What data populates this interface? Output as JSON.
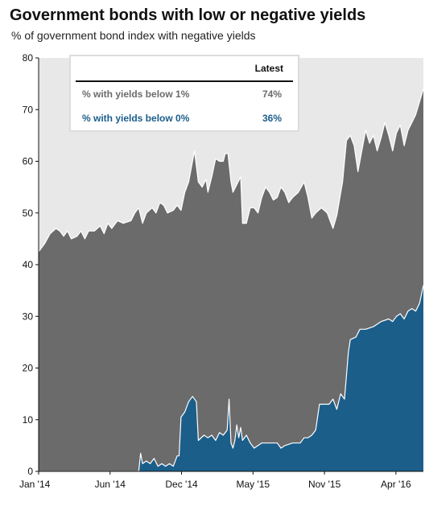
{
  "chart_data": {
    "type": "area",
    "title": "Government bonds with low or negative yields",
    "subtitle": "% of government bond index with negative yields",
    "xlabel": "",
    "ylabel": "",
    "ylim": [
      0,
      80
    ],
    "y_ticks": [
      "0",
      "10",
      "20",
      "30",
      "40",
      "50",
      "60",
      "70",
      "80"
    ],
    "x_ticks": [
      {
        "t": 0,
        "label": "Jan '14"
      },
      {
        "t": 0.1857,
        "label": "Jun '14"
      },
      {
        "t": 0.3714,
        "label": "Dec '14"
      },
      {
        "t": 0.5571,
        "label": "May '15"
      },
      {
        "t": 0.7429,
        "label": "Nov '15"
      },
      {
        "t": 0.9286,
        "label": "Apr '16"
      }
    ],
    "grid": false,
    "legend_position": "top-left",
    "legend": {
      "header": "Latest",
      "rows": [
        {
          "label": "% with yields below 1%",
          "value": "74%",
          "color": "#6b6b6b"
        },
        {
          "label": "% with yields below 0%",
          "value": "36%",
          "color": "#1b5e8a"
        }
      ]
    },
    "series": [
      {
        "name": "% with yields below 1%",
        "color": "#6b6b6b",
        "points": [
          [
            0.0,
            42.5
          ],
          [
            0.015,
            44.0
          ],
          [
            0.03,
            46.0
          ],
          [
            0.045,
            47.0
          ],
          [
            0.055,
            46.5
          ],
          [
            0.065,
            45.5
          ],
          [
            0.075,
            46.5
          ],
          [
            0.085,
            45.0
          ],
          [
            0.1,
            45.5
          ],
          [
            0.11,
            46.5
          ],
          [
            0.12,
            45.0
          ],
          [
            0.13,
            46.5
          ],
          [
            0.145,
            46.5
          ],
          [
            0.16,
            47.5
          ],
          [
            0.17,
            46.0
          ],
          [
            0.18,
            48.0
          ],
          [
            0.19,
            47.0
          ],
          [
            0.205,
            48.5
          ],
          [
            0.22,
            48.0
          ],
          [
            0.24,
            48.5
          ],
          [
            0.25,
            50.0
          ],
          [
            0.26,
            51.0
          ],
          [
            0.27,
            48.0
          ],
          [
            0.28,
            50.0
          ],
          [
            0.295,
            51.0
          ],
          [
            0.305,
            50.0
          ],
          [
            0.315,
            52.0
          ],
          [
            0.325,
            51.5
          ],
          [
            0.335,
            50.0
          ],
          [
            0.35,
            50.5
          ],
          [
            0.36,
            51.5
          ],
          [
            0.37,
            50.5
          ],
          [
            0.38,
            54.0
          ],
          [
            0.39,
            56.0
          ],
          [
            0.4,
            60.0
          ],
          [
            0.405,
            62.0
          ],
          [
            0.415,
            56.0
          ],
          [
            0.425,
            55.0
          ],
          [
            0.435,
            56.5
          ],
          [
            0.44,
            54.0
          ],
          [
            0.45,
            57.0
          ],
          [
            0.46,
            60.5
          ],
          [
            0.47,
            60.0
          ],
          [
            0.48,
            60.0
          ],
          [
            0.485,
            61.5
          ],
          [
            0.492,
            61.5
          ],
          [
            0.5,
            56.0
          ],
          [
            0.505,
            54.0
          ],
          [
            0.515,
            55.5
          ],
          [
            0.525,
            57.0
          ],
          [
            0.53,
            48.0
          ],
          [
            0.54,
            48.0
          ],
          [
            0.55,
            51.0
          ],
          [
            0.56,
            51.0
          ],
          [
            0.57,
            50.0
          ],
          [
            0.58,
            53.0
          ],
          [
            0.59,
            55.0
          ],
          [
            0.6,
            54.0
          ],
          [
            0.61,
            52.5
          ],
          [
            0.62,
            53.0
          ],
          [
            0.63,
            55.0
          ],
          [
            0.64,
            54.0
          ],
          [
            0.65,
            52.0
          ],
          [
            0.66,
            53.0
          ],
          [
            0.675,
            54.0
          ],
          [
            0.69,
            56.0
          ],
          [
            0.7,
            53.0
          ],
          [
            0.71,
            49.0
          ],
          [
            0.72,
            50.0
          ],
          [
            0.735,
            51.0
          ],
          [
            0.75,
            50.0
          ],
          [
            0.765,
            47.0
          ],
          [
            0.775,
            49.5
          ],
          [
            0.79,
            56.0
          ],
          [
            0.8,
            64.0
          ],
          [
            0.81,
            65.0
          ],
          [
            0.82,
            63.0
          ],
          [
            0.83,
            58.0
          ],
          [
            0.84,
            62.0
          ],
          [
            0.85,
            66.0
          ],
          [
            0.86,
            63.5
          ],
          [
            0.87,
            65.0
          ],
          [
            0.88,
            62.0
          ],
          [
            0.89,
            64.5
          ],
          [
            0.9,
            67.5
          ],
          [
            0.91,
            65.0
          ],
          [
            0.92,
            62.0
          ],
          [
            0.93,
            65.5
          ],
          [
            0.94,
            67.0
          ],
          [
            0.95,
            63.0
          ],
          [
            0.96,
            66.0
          ],
          [
            0.97,
            67.5
          ],
          [
            0.98,
            69.0
          ],
          [
            0.99,
            71.5
          ],
          [
            1.0,
            74.0
          ]
        ]
      },
      {
        "name": "% with yields below 0%",
        "color": "#1b5e8a",
        "points": [
          [
            0.0,
            0.0
          ],
          [
            0.26,
            0.0
          ],
          [
            0.265,
            3.5
          ],
          [
            0.27,
            1.5
          ],
          [
            0.28,
            2.0
          ],
          [
            0.29,
            1.5
          ],
          [
            0.3,
            2.5
          ],
          [
            0.31,
            1.0
          ],
          [
            0.32,
            1.5
          ],
          [
            0.33,
            1.0
          ],
          [
            0.34,
            1.5
          ],
          [
            0.35,
            1.0
          ],
          [
            0.36,
            3.0
          ],
          [
            0.365,
            3.0
          ],
          [
            0.37,
            10.5
          ],
          [
            0.38,
            11.5
          ],
          [
            0.39,
            13.5
          ],
          [
            0.4,
            14.5
          ],
          [
            0.41,
            13.5
          ],
          [
            0.415,
            6.0
          ],
          [
            0.43,
            7.0
          ],
          [
            0.44,
            6.5
          ],
          [
            0.45,
            7.0
          ],
          [
            0.46,
            6.0
          ],
          [
            0.47,
            7.5
          ],
          [
            0.48,
            7.0
          ],
          [
            0.49,
            8.0
          ],
          [
            0.495,
            14.0
          ],
          [
            0.5,
            5.5
          ],
          [
            0.505,
            4.5
          ],
          [
            0.51,
            6.0
          ],
          [
            0.515,
            9.0
          ],
          [
            0.52,
            6.5
          ],
          [
            0.525,
            8.5
          ],
          [
            0.53,
            6.0
          ],
          [
            0.54,
            7.0
          ],
          [
            0.55,
            5.5
          ],
          [
            0.56,
            4.5
          ],
          [
            0.57,
            5.0
          ],
          [
            0.58,
            5.5
          ],
          [
            0.6,
            5.5
          ],
          [
            0.62,
            5.5
          ],
          [
            0.63,
            4.5
          ],
          [
            0.64,
            5.0
          ],
          [
            0.66,
            5.5
          ],
          [
            0.68,
            5.5
          ],
          [
            0.69,
            6.5
          ],
          [
            0.7,
            6.5
          ],
          [
            0.71,
            7.0
          ],
          [
            0.72,
            8.0
          ],
          [
            0.73,
            13.0
          ],
          [
            0.745,
            13.0
          ],
          [
            0.755,
            13.0
          ],
          [
            0.765,
            14.0
          ],
          [
            0.775,
            12.0
          ],
          [
            0.785,
            15.0
          ],
          [
            0.795,
            14.0
          ],
          [
            0.805,
            23.0
          ],
          [
            0.81,
            25.5
          ],
          [
            0.825,
            26.0
          ],
          [
            0.835,
            27.5
          ],
          [
            0.85,
            27.5
          ],
          [
            0.87,
            28.0
          ],
          [
            0.89,
            29.0
          ],
          [
            0.91,
            29.5
          ],
          [
            0.92,
            29.0
          ],
          [
            0.93,
            30.0
          ],
          [
            0.94,
            30.5
          ],
          [
            0.95,
            29.5
          ],
          [
            0.96,
            31.0
          ],
          [
            0.97,
            31.5
          ],
          [
            0.98,
            31.0
          ],
          [
            0.99,
            32.5
          ],
          [
            1.0,
            36.0
          ]
        ]
      }
    ]
  }
}
